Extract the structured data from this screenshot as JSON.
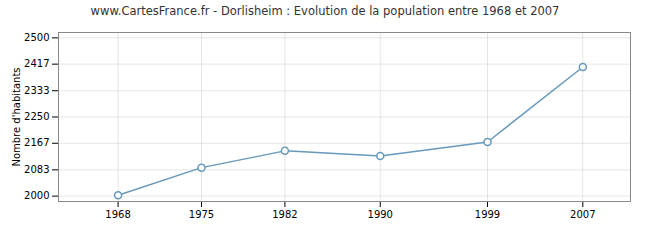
{
  "chart_data": {
    "type": "line",
    "title": "www.CartesFrance.fr - Dorlisheim : Evolution de la population entre 1968 et 2007",
    "ylabel": "Nombre d'habitants",
    "x": [
      1968,
      1975,
      1982,
      1990,
      1999,
      2007
    ],
    "values": [
      2003,
      2090,
      2143,
      2127,
      2171,
      2408
    ],
    "color": "#6699bb",
    "marker": "circle",
    "xlim": [
      1963,
      2011
    ],
    "xticks": [
      1968,
      1975,
      1982,
      1990,
      1999,
      2007
    ],
    "ylim": [
      1983,
      2517
    ],
    "yticks": [
      2000,
      2083,
      2167,
      2250,
      2333,
      2417,
      2500
    ],
    "grid": true
  }
}
